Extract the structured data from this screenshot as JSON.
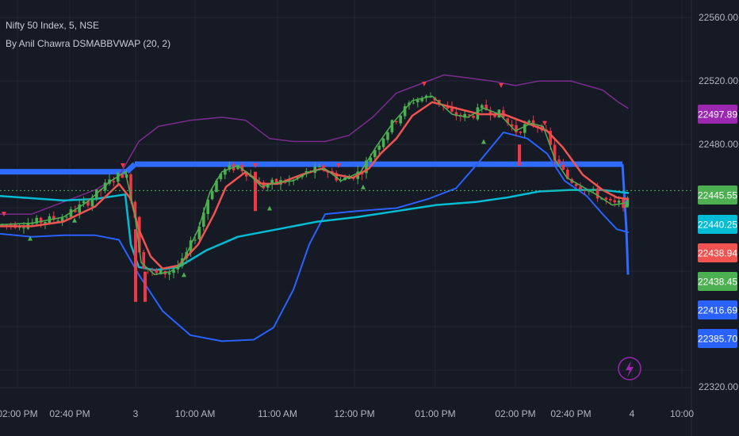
{
  "legend": {
    "symbol_line": "Nifty 50 Index, 5, NSE",
    "indicator_line": "By Anil Chawra DSMABBVWAP (20, 2)"
  },
  "colors": {
    "background": "#161a25",
    "grid": "#232733",
    "candle_up": "#4caf50",
    "candle_down": "#f23645",
    "upper_band": "#7b2d8e",
    "lower_band": "#2962ff",
    "vwap": "#00bcd4",
    "sma": "#f05350",
    "fast_line": "#4caf50",
    "horizontal_level": "#2f6bff",
    "price_dotted": "#4caf50",
    "text": "#b2b5be"
  },
  "chart_data": {
    "type": "candlestick",
    "symbol": "Nifty 50 Index",
    "timeframe": "5",
    "exchange": "NSE",
    "indicator": "By Anil Chawra DSMABBVWAP (20, 2)",
    "y_axis": {
      "ticks": [
        22560,
        22520,
        22480,
        22320
      ],
      "tick_labels": [
        "22560.00",
        "22520.00",
        "22480.00",
        "22320.00"
      ],
      "range": [
        22320,
        22570
      ]
    },
    "x_axis": {
      "ticks": [
        "02:00 PM",
        "02:40 PM",
        "3",
        "10:00 AM",
        "11:00 AM",
        "12:00 PM",
        "01:00 PM",
        "02:00 PM",
        "02:40 PM",
        "4",
        "10:00"
      ]
    },
    "price_labels": [
      {
        "value": "22497.89",
        "color": "#9c27b0",
        "series": "upper band"
      },
      {
        "value": "22445.55",
        "color": "#4caf50",
        "series": "last price"
      },
      {
        "value": "22440.25",
        "color": "#00bcd4",
        "series": "vwap"
      },
      {
        "value": "22438.94",
        "color": "#f05350",
        "series": "sma"
      },
      {
        "value": "22438.45",
        "color": "#4caf50",
        "series": "fast line"
      },
      {
        "value": "22416.69",
        "color": "#2962ff",
        "series": "level"
      },
      {
        "value": "22385.70",
        "color": "#2962ff",
        "series": "lower band"
      }
    ],
    "series": [
      {
        "name": "upper",
        "color": "#7b2d8e",
        "width": 1.5,
        "points": [
          [
            0,
            22430
          ],
          [
            40,
            22430
          ],
          [
            80,
            22438
          ],
          [
            120,
            22446
          ],
          [
            150,
            22455
          ],
          [
            175,
            22478
          ],
          [
            200,
            22488
          ],
          [
            240,
            22492
          ],
          [
            280,
            22494
          ],
          [
            310,
            22492
          ],
          [
            340,
            22480
          ],
          [
            370,
            22478
          ],
          [
            410,
            22478
          ],
          [
            440,
            22482
          ],
          [
            470,
            22494
          ],
          [
            500,
            22510
          ],
          [
            530,
            22516
          ],
          [
            560,
            22522
          ],
          [
            590,
            22520
          ],
          [
            620,
            22518
          ],
          [
            650,
            22515
          ],
          [
            680,
            22518
          ],
          [
            720,
            22518
          ],
          [
            760,
            22512
          ],
          [
            780,
            22504
          ],
          [
            792,
            22500
          ]
        ]
      },
      {
        "name": "lower",
        "color": "#2962ff",
        "width": 2,
        "points": [
          [
            0,
            22417
          ],
          [
            40,
            22415
          ],
          [
            80,
            22416
          ],
          [
            120,
            22416
          ],
          [
            150,
            22413
          ],
          [
            175,
            22390
          ],
          [
            205,
            22366
          ],
          [
            240,
            22350
          ],
          [
            280,
            22346
          ],
          [
            320,
            22347
          ],
          [
            345,
            22355
          ],
          [
            370,
            22380
          ],
          [
            390,
            22410
          ],
          [
            410,
            22430
          ],
          [
            450,
            22432
          ],
          [
            500,
            22434
          ],
          [
            540,
            22440
          ],
          [
            575,
            22447
          ],
          [
            605,
            22465
          ],
          [
            635,
            22484
          ],
          [
            665,
            22480
          ],
          [
            690,
            22470
          ],
          [
            712,
            22452
          ],
          [
            740,
            22442
          ],
          [
            760,
            22430
          ],
          [
            778,
            22420
          ],
          [
            792,
            22418
          ]
        ]
      },
      {
        "name": "vwap",
        "color": "#00bcd4",
        "width": 2.5,
        "points": [
          [
            0,
            22442
          ],
          [
            80,
            22439
          ],
          [
            120,
            22440
          ],
          [
            158,
            22443
          ],
          [
            165,
            22410
          ],
          [
            175,
            22395
          ],
          [
            195,
            22393
          ],
          [
            225,
            22395
          ],
          [
            260,
            22406
          ],
          [
            300,
            22415
          ],
          [
            350,
            22420
          ],
          [
            400,
            22425
          ],
          [
            450,
            22428
          ],
          [
            500,
            22432
          ],
          [
            550,
            22436
          ],
          [
            600,
            22438
          ],
          [
            640,
            22441
          ],
          [
            680,
            22445
          ],
          [
            720,
            22446
          ],
          [
            760,
            22446
          ],
          [
            792,
            22444
          ]
        ]
      },
      {
        "name": "sma",
        "color": "#f05350",
        "width": 2.5,
        "points": [
          [
            0,
            22422
          ],
          [
            40,
            22422
          ],
          [
            80,
            22425
          ],
          [
            120,
            22435
          ],
          [
            150,
            22450
          ],
          [
            165,
            22440
          ],
          [
            175,
            22420
          ],
          [
            190,
            22402
          ],
          [
            205,
            22394
          ],
          [
            225,
            22396
          ],
          [
            250,
            22410
          ],
          [
            270,
            22430
          ],
          [
            285,
            22448
          ],
          [
            310,
            22458
          ],
          [
            330,
            22450
          ],
          [
            350,
            22450
          ],
          [
            380,
            22456
          ],
          [
            405,
            22460
          ],
          [
            425,
            22456
          ],
          [
            445,
            22454
          ],
          [
            465,
            22460
          ],
          [
            480,
            22470
          ],
          [
            500,
            22480
          ],
          [
            520,
            22495
          ],
          [
            545,
            22504
          ],
          [
            575,
            22500
          ],
          [
            605,
            22496
          ],
          [
            635,
            22496
          ],
          [
            665,
            22490
          ],
          [
            690,
            22485
          ],
          [
            710,
            22474
          ],
          [
            735,
            22456
          ],
          [
            760,
            22446
          ],
          [
            778,
            22441
          ],
          [
            792,
            22440
          ]
        ]
      },
      {
        "name": "fast",
        "color": "#4caf50",
        "width": 1.5,
        "points": [
          [
            0,
            22423
          ],
          [
            40,
            22424
          ],
          [
            80,
            22428
          ],
          [
            110,
            22438
          ],
          [
            140,
            22452
          ],
          [
            158,
            22458
          ],
          [
            170,
            22430
          ],
          [
            178,
            22398
          ],
          [
            195,
            22390
          ],
          [
            215,
            22392
          ],
          [
            230,
            22398
          ],
          [
            250,
            22420
          ],
          [
            265,
            22445
          ],
          [
            280,
            22458
          ],
          [
            300,
            22462
          ],
          [
            315,
            22456
          ],
          [
            330,
            22448
          ],
          [
            350,
            22451
          ],
          [
            370,
            22452
          ],
          [
            390,
            22458
          ],
          [
            410,
            22460
          ],
          [
            430,
            22452
          ],
          [
            455,
            22458
          ],
          [
            475,
            22475
          ],
          [
            495,
            22490
          ],
          [
            520,
            22505
          ],
          [
            545,
            22508
          ],
          [
            570,
            22496
          ],
          [
            590,
            22494
          ],
          [
            610,
            22500
          ],
          [
            630,
            22496
          ],
          [
            650,
            22485
          ],
          [
            670,
            22490
          ],
          [
            685,
            22488
          ],
          [
            700,
            22466
          ],
          [
            715,
            22454
          ],
          [
            735,
            22448
          ],
          [
            755,
            22442
          ],
          [
            772,
            22436
          ],
          [
            785,
            22437
          ],
          [
            792,
            22438
          ]
        ]
      }
    ],
    "horizontal_level": {
      "color": "#2f6bff",
      "segments": [
        [
          0,
          22458,
          160,
          22458
        ],
        [
          160,
          22458,
          170,
          22463
        ],
        [
          170,
          22463,
          785,
          22463
        ]
      ],
      "tail": [
        [
          785,
          22463
        ],
        [
          790,
          22420
        ],
        [
          792,
          22390
        ]
      ]
    },
    "last_price_line": 22445.55,
    "candles_note": "5-minute candles approximated from screenshot"
  }
}
